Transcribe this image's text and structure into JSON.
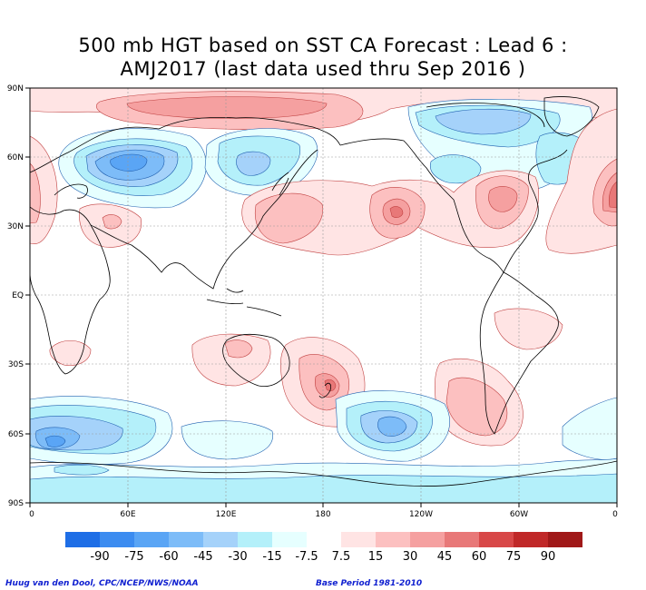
{
  "title": {
    "line1": "500 mb HGT based on SST CA Forecast : Lead 6 :",
    "line2": "AMJ2017 (last data used thru Sep 2016 )"
  },
  "axes": {
    "lat_labels": [
      "90N",
      "60N",
      "30N",
      "EQ",
      "30S",
      "60S",
      "90S"
    ],
    "lon_labels": [
      "0",
      "60E",
      "120E",
      "180",
      "120W",
      "60W",
      "0"
    ]
  },
  "legend": {
    "labels": [
      "-90",
      "-75",
      "-60",
      "-45",
      "-30",
      "-15",
      "-7.5",
      "7.5",
      "15",
      "30",
      "45",
      "60",
      "75",
      "90"
    ],
    "colors": [
      "#1e6ee6",
      "#3c8cf0",
      "#5aa5f5",
      "#7dbcf8",
      "#a5d2fa",
      "#b4f0fa",
      "#e6ffff",
      "#ffffff",
      "#ffe4e4",
      "#fcc0c0",
      "#f5a0a0",
      "#e87878",
      "#d84848",
      "#c02828",
      "#a01818"
    ]
  },
  "footer": {
    "credit": "Huug van den Dool, CPC/NCEP/NWS/NOAA",
    "base_period": "Base Period 1981-2010"
  },
  "chart_data": {
    "type": "heatmap",
    "title": "500 mb HGT based on SST CA Forecast : Lead 6 : AMJ2017 (last data used thru Sep 2016 )",
    "lon_range": [
      0,
      360
    ],
    "lat_range": [
      -90,
      90
    ],
    "contour_levels": [
      -90,
      -75,
      -60,
      -45,
      -30,
      -15,
      -7.5,
      7.5,
      15,
      30,
      45,
      60,
      75,
      90
    ],
    "grid": true,
    "anomaly_centers": [
      {
        "lon": 140,
        "lat": 80,
        "level": 30
      },
      {
        "lon": 58,
        "lat": 57,
        "level": -45
      },
      {
        "lon": 143,
        "lat": 55,
        "level": -30
      },
      {
        "lon": 295,
        "lat": 75,
        "level": -30
      },
      {
        "lon": 275,
        "lat": 52,
        "level": -15
      },
      {
        "lon": 168,
        "lat": 33,
        "level": 30
      },
      {
        "lon": 222,
        "lat": 37,
        "level": 45
      },
      {
        "lon": 287,
        "lat": 40,
        "level": 30
      },
      {
        "lon": 360,
        "lat": 42,
        "level": 45
      },
      {
        "lon": 52,
        "lat": 30,
        "level": 15
      },
      {
        "lon": 192,
        "lat": -38,
        "level": 45
      },
      {
        "lon": 135,
        "lat": -25,
        "level": 15
      },
      {
        "lon": 303,
        "lat": -12,
        "level": 15
      },
      {
        "lon": 45,
        "lat": -23,
        "level": 15
      },
      {
        "lon": 290,
        "lat": -50,
        "level": 30
      },
      {
        "lon": 15,
        "lat": -63,
        "level": -45
      },
      {
        "lon": 220,
        "lat": -58,
        "level": -30
      },
      {
        "lon": 350,
        "lat": -60,
        "level": -15
      },
      {
        "lon": 150,
        "lat": -62,
        "level": -15
      },
      {
        "lon": 180,
        "lat": -85,
        "level": -15
      }
    ]
  }
}
